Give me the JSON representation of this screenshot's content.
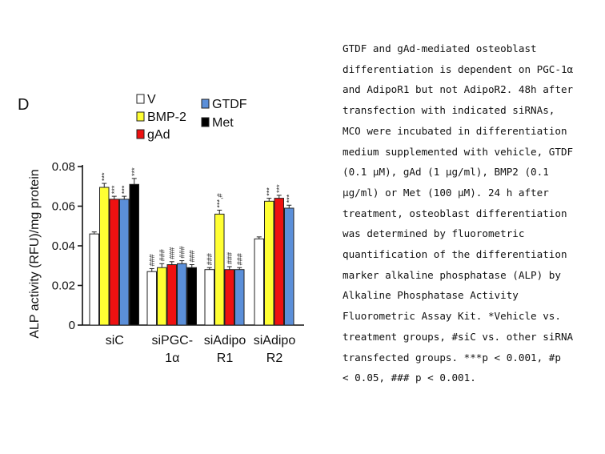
{
  "panel_label": "D",
  "caption_lines": [
    "GTDF and gAd-mediated osteoblast",
    "differentiation is dependent on PGC-1α",
    "and AdipoR1 but not AdipoR2. 48h after",
    "transfection with indicated siRNAs,",
    "MCO were incubated in differentiation",
    "medium supplemented with vehicle, GTDF",
    "(0.1 μM), gAd (1 μg/ml), BMP2 (0.1",
    "μg/ml) or Met (100 μM). 24 h after",
    "treatment, osteoblast differentiation",
    "was determined by fluorometric",
    "quantification of the differentiation",
    "marker alkaline phosphatase (ALP) by",
    "Alkaline Phosphatase Activity",
    "Fluorometric Assay Kit. *Vehicle vs.",
    "treatment groups, #siC vs. other siRNA",
    "transfected groups. ***p < 0.001, #p",
    "< 0.05, ### p < 0.001."
  ],
  "colors": {
    "V": "#ffffff",
    "BMP-2": "#ffff33",
    "gAd": "#ee1111",
    "GTDF": "#5b8fd9",
    "Met": "#000000"
  },
  "chart_data": {
    "type": "bar",
    "title": "",
    "xlabel": "",
    "ylabel": "ALP activity (RFU)/mg protein",
    "ylim": [
      0,
      0.08
    ],
    "yticks": [
      "0",
      "0.02",
      "0.04",
      "0.06",
      "0.08"
    ],
    "categories": [
      {
        "lines": [
          "siC"
        ]
      },
      {
        "lines": [
          "siPGC-",
          "1α"
        ]
      },
      {
        "lines": [
          "siAdipo",
          "R1"
        ]
      },
      {
        "lines": [
          "siAdipo",
          "R2"
        ]
      }
    ],
    "series": [
      {
        "name": "V",
        "values": [
          0.046,
          0.027,
          0.028,
          0.0435
        ],
        "errors": [
          0.001,
          0.0015,
          0.001,
          0.001
        ],
        "annotations": [
          "",
          "###",
          "###",
          ""
        ]
      },
      {
        "name": "BMP-2",
        "values": [
          0.0695,
          0.029,
          0.056,
          0.0625
        ],
        "errors": [
          0.002,
          0.002,
          0.002,
          0.0015
        ],
        "annotations": [
          "***",
          "###",
          "***,#",
          "***"
        ]
      },
      {
        "name": "gAd",
        "values": [
          0.0635,
          0.0305,
          0.028,
          0.064
        ],
        "errors": [
          0.0015,
          0.0015,
          0.0015,
          0.0015
        ],
        "annotations": [
          "***",
          "###",
          "###",
          "***"
        ]
      },
      {
        "name": "GTDF",
        "values": [
          0.0635,
          0.031,
          0.028,
          0.059
        ],
        "errors": [
          0.0015,
          0.0015,
          0.001,
          0.0015
        ],
        "annotations": [
          "***",
          "###",
          "###",
          "***"
        ]
      },
      {
        "name": "Met",
        "values": [
          0.071,
          0.029,
          null,
          null
        ],
        "errors": [
          0.003,
          0.0015,
          null,
          null
        ],
        "annotations": [
          "***",
          "###",
          "",
          ""
        ]
      }
    ],
    "legend": [
      "V",
      "BMP-2",
      "gAd",
      "GTDF",
      "Met"
    ],
    "legend_placement": "top"
  }
}
